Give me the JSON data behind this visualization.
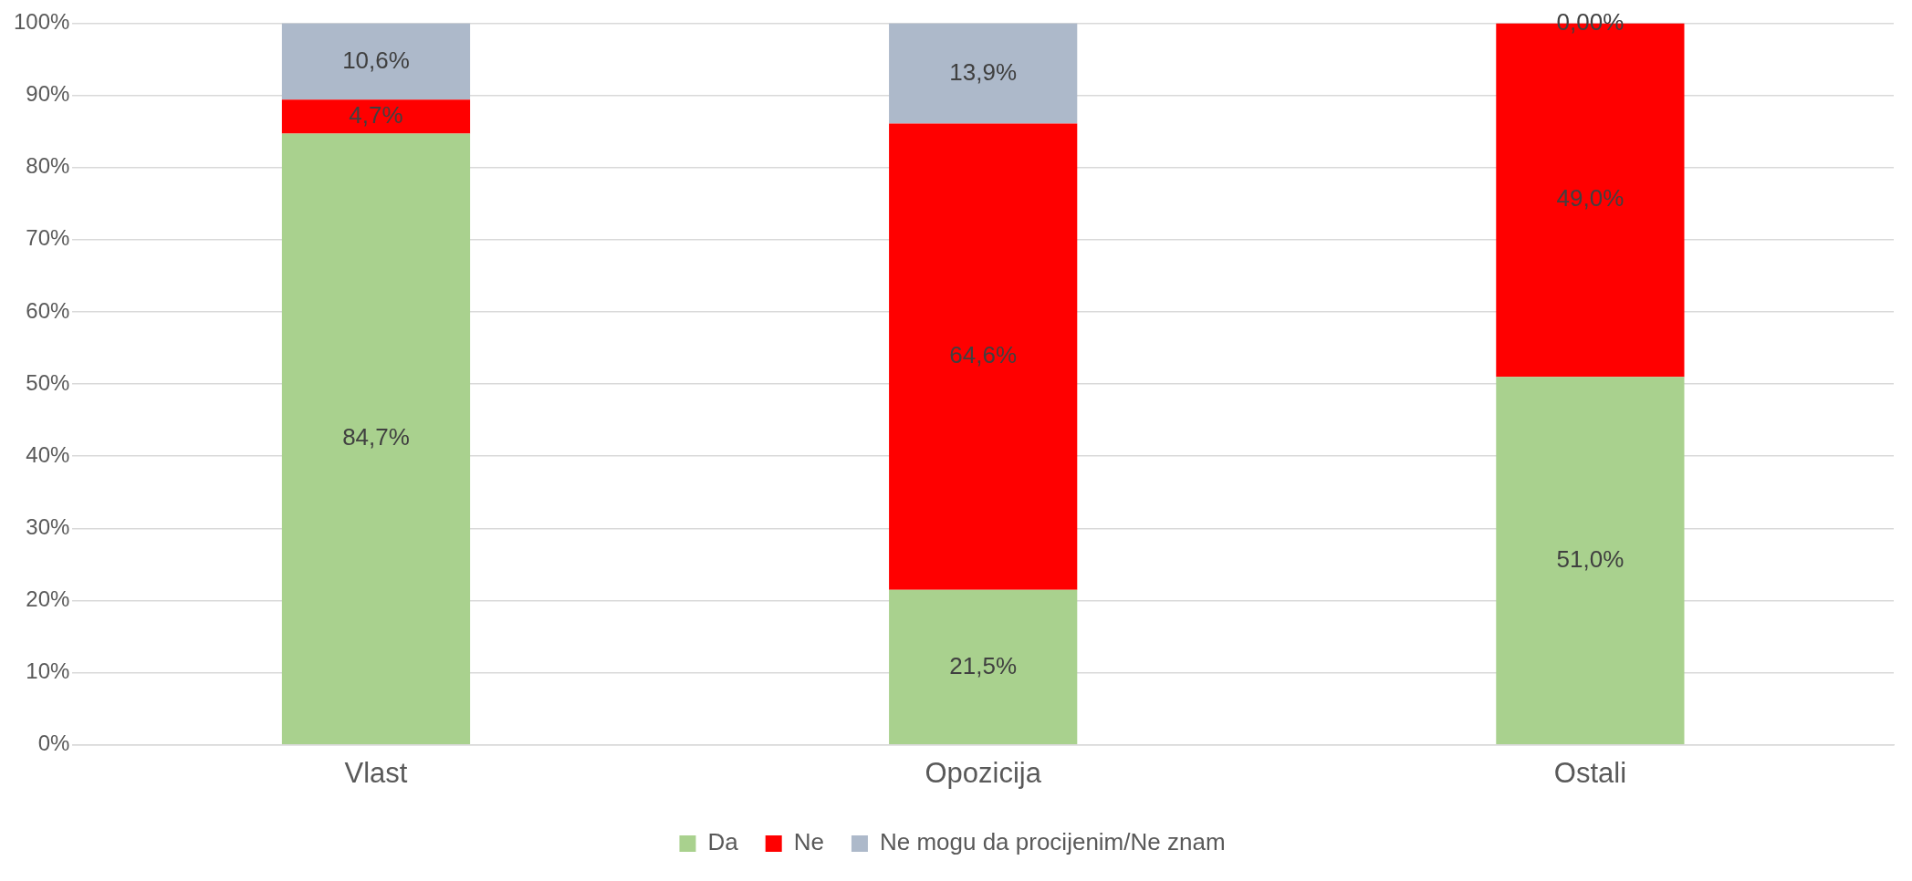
{
  "chart_data": {
    "type": "bar",
    "stacked": true,
    "categories": [
      "Vlast",
      "Opozicija",
      "Ostali"
    ],
    "series": [
      {
        "name": "Da",
        "color": "#a9d18e",
        "values": [
          84.7,
          21.5,
          51.0
        ],
        "value_labels": [
          "84,7%",
          "21,5%",
          "51,0%"
        ]
      },
      {
        "name": "Ne",
        "color": "#ff0000",
        "values": [
          4.7,
          64.6,
          49.0
        ],
        "value_labels": [
          "4,7%",
          "64,6%",
          "49,0%"
        ]
      },
      {
        "name": "Ne mogu da procijenim/Ne znam",
        "color": "#adb9ca",
        "values": [
          10.6,
          13.9,
          0.0
        ],
        "value_labels": [
          "10,6%",
          "13,9%",
          "0,00%"
        ]
      }
    ],
    "ylim": [
      0,
      100
    ],
    "yticks": [
      {
        "value": 0,
        "label": "0%"
      },
      {
        "value": 10,
        "label": "10%"
      },
      {
        "value": 20,
        "label": "20%"
      },
      {
        "value": 30,
        "label": "30%"
      },
      {
        "value": 40,
        "label": "40%"
      },
      {
        "value": 50,
        "label": "50%"
      },
      {
        "value": 60,
        "label": "60%"
      },
      {
        "value": 70,
        "label": "70%"
      },
      {
        "value": 80,
        "label": "80%"
      },
      {
        "value": 90,
        "label": "90%"
      },
      {
        "value": 100,
        "label": "100%"
      }
    ],
    "grid": "y",
    "legend": "bottom"
  }
}
